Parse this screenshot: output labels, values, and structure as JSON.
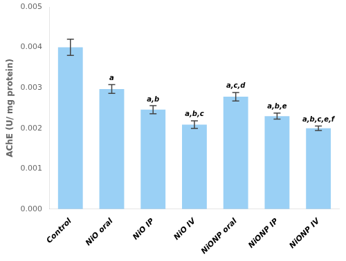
{
  "chart_data": {
    "type": "bar",
    "categories": [
      "Control",
      "NiO oral",
      "NiO IP",
      "NiO IV",
      "NiONP oral",
      "NiONP IP",
      "NiONP IV"
    ],
    "values": [
      0.004,
      0.00297,
      0.00246,
      0.00209,
      0.00278,
      0.0023,
      0.002
    ],
    "errors": [
      0.0002,
      0.00011,
      0.0001,
      9.5e-05,
      0.000105,
      7.5e-05,
      5.5e-05
    ],
    "annotations": [
      {
        "category": "NiO oral",
        "text": "a"
      },
      {
        "category": "NiO IP",
        "text": "a,b"
      },
      {
        "category": "NiO IV",
        "text": "a,b,c"
      },
      {
        "category": "NiONP oral",
        "text": "a,c,d"
      },
      {
        "category": "NiONP IP",
        "text": "a,b,e"
      },
      {
        "category": "NiONP IV",
        "text": "a,b,c,e,f"
      }
    ],
    "ylabel": "AChE (U/ mg protein)",
    "ylim": [
      0.0,
      0.005
    ],
    "yticks": [
      {
        "value": 0.0,
        "label": "0.000"
      },
      0.001,
      0.002,
      0.003,
      0.004,
      0.005
    ],
    "grid": false
  }
}
